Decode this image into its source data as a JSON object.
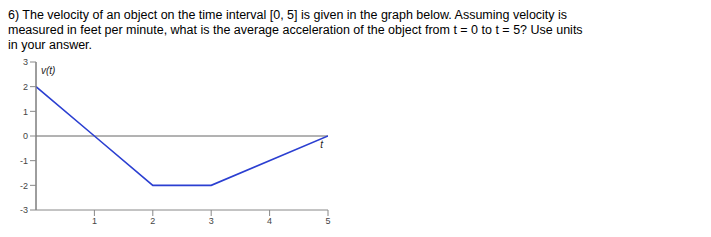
{
  "question": [
    "6) The velocity of an object on the time interval [0, 5] is given in the graph below. Assuming velocity is",
    "measured in feet per minute, what is the average acceleration of the object from t = 0 to t = 5? Use units",
    "in your answer."
  ],
  "chart_data": {
    "type": "line",
    "x": [
      0,
      1,
      2,
      3,
      5
    ],
    "values": [
      2,
      0,
      -2,
      -2,
      0
    ],
    "color": "#2b3fd1",
    "xlim": [
      0,
      5
    ],
    "ylim": [
      -3,
      3
    ],
    "xticks": [
      1,
      2,
      3,
      4,
      5
    ],
    "yticks": [
      -3,
      -2,
      -1,
      0,
      1,
      2,
      3
    ],
    "xlabel": "t",
    "ylabel": "v(t)",
    "grid": false,
    "marker": "none"
  }
}
